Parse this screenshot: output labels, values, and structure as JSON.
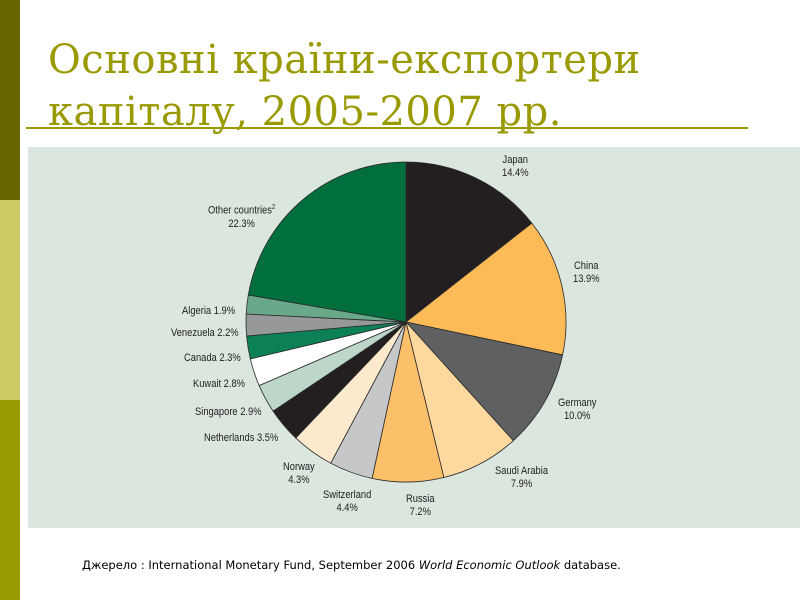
{
  "slide": {
    "title_line1": "Основні країни-експортери",
    "title_line2": "капіталу, 2005-2007 рр.",
    "source_prefix": "Джерело : International Monetary Fund, September 2006 ",
    "source_italic": "World Economic Outlook",
    "source_suffix": " database.",
    "colors": {
      "title": "#999900",
      "sidebar_top": "#666600",
      "sidebar_mid": "#cccc66",
      "sidebar_bottom": "#999900",
      "panel_bg": "#dae6de"
    }
  },
  "labels": {
    "japan_name": "Japan",
    "japan_value": "14.4%",
    "china_name": "China",
    "china_value": "13.9%",
    "germany_name": "Germany",
    "germany_value": "10.0%",
    "saudi_name": "Saudi Arabia",
    "saudi_value": "7.9%",
    "russia_name": "Russia",
    "russia_value": "7.2%",
    "switzerland_name": "Switzerland",
    "switzerland_value": "4.4%",
    "norway_name": "Norway",
    "norway_value": "4.3%",
    "netherlands": "Netherlands 3.5%",
    "singapore": "Singapore 2.9%",
    "kuwait": "Kuwait 2.8%",
    "canada": "Canada 2.3%",
    "venezuela": "Venezuela 2.2%",
    "algeria": "Algeria 1.9%",
    "other_name": "Other countries",
    "other_sup": "2",
    "other_value": "22.3%"
  },
  "chart_data": {
    "type": "pie",
    "title": "Основні країни-експортери капіталу, 2005-2007 рр.",
    "start_angle": "12 o'clock, clockwise",
    "categories": [
      "Japan",
      "China",
      "Germany",
      "Saudi Arabia",
      "Russia",
      "Switzerland",
      "Norway",
      "Netherlands",
      "Singapore",
      "Kuwait",
      "Canada",
      "Venezuela",
      "Algeria",
      "Other countries"
    ],
    "values": [
      14.4,
      13.9,
      10.0,
      7.9,
      7.2,
      4.4,
      4.3,
      3.5,
      2.9,
      2.8,
      2.3,
      2.2,
      1.9,
      22.3
    ],
    "unit": "%",
    "colors": [
      "#231f20",
      "#fdbb58",
      "#5f6062",
      "#fdd9a0",
      "#fcc06a",
      "#c6c7c9",
      "#fde9cc",
      "#231f20",
      "#bcd7c7",
      "#ffffff",
      "#0c8155",
      "#96989a",
      "#6aa88a",
      "#006e3d"
    ],
    "source": "International Monetary Fund, September 2006 World Economic Outlook database"
  }
}
